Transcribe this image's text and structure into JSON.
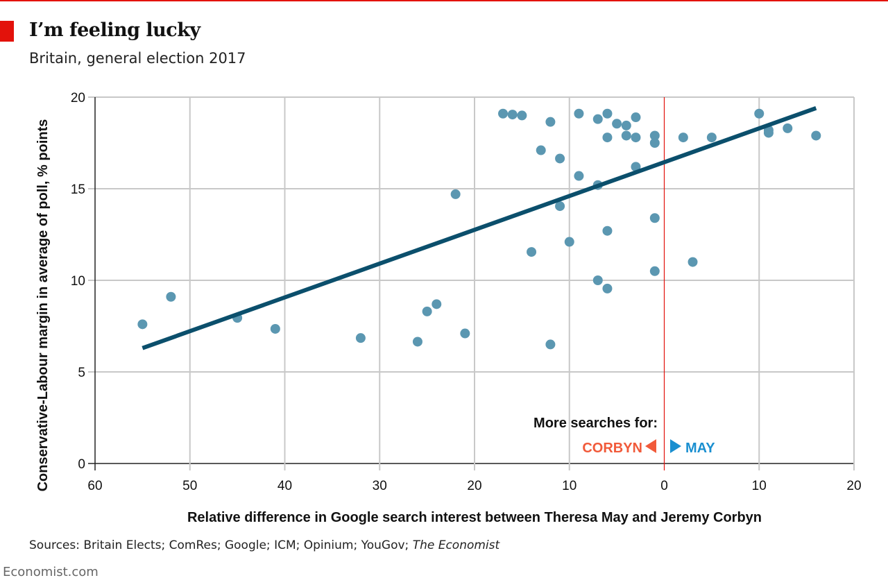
{
  "title": "I’m feeling lucky",
  "subtitle": "Britain, general election 2017",
  "source_prefix": "Sources: Britain Elects; ComRes; Google; ICM; Opinium; YouGov; ",
  "source_italic": "The Economist",
  "brand": "Economist.com",
  "chart_data": {
    "type": "scatter",
    "title": "I’m feeling lucky",
    "xlabel": "Relative difference in Google search interest between Theresa May and Jeremy Corbyn",
    "ylabel": "Conservative-Labour margin in average of poll, % points",
    "xlim": [
      -60,
      20
    ],
    "ylim": [
      0,
      20
    ],
    "x_ticks": [
      -60,
      -50,
      -40,
      -30,
      -20,
      -10,
      0,
      10,
      20
    ],
    "x_tick_labels": [
      "60",
      "50",
      "40",
      "30",
      "20",
      "10",
      "0",
      "10",
      "20"
    ],
    "y_ticks": [
      0,
      5,
      10,
      15,
      20
    ],
    "y_tick_labels": [
      "0",
      "5",
      "10",
      "15",
      "20"
    ],
    "grid": true,
    "colors": {
      "points": "#5b97b1",
      "trend": "#0b4f6c",
      "zero_line": "#e3120b",
      "corbyn": "#f15a3a",
      "may": "#1a8fd0"
    },
    "annotation": {
      "heading": "More searches for:",
      "left": "CORBYN",
      "right": "MAY"
    },
    "trendline": {
      "x": [
        -55,
        16
      ],
      "y": [
        6.3,
        19.4
      ]
    },
    "points": [
      [
        -55,
        7.6
      ],
      [
        -52,
        9.1
      ],
      [
        -45,
        7.95
      ],
      [
        -41,
        7.35
      ],
      [
        -32,
        6.85
      ],
      [
        -26,
        6.65
      ],
      [
        -25,
        8.3
      ],
      [
        -24,
        8.7
      ],
      [
        -22,
        14.7
      ],
      [
        -21,
        7.1
      ],
      [
        -17,
        19.1
      ],
      [
        -16,
        19.05
      ],
      [
        -15,
        19.0
      ],
      [
        -14,
        11.55
      ],
      [
        -13,
        17.1
      ],
      [
        -12,
        18.65
      ],
      [
        -12,
        6.5
      ],
      [
        -11,
        16.65
      ],
      [
        -11,
        14.05
      ],
      [
        -10,
        12.1
      ],
      [
        -9,
        19.1
      ],
      [
        -9,
        15.7
      ],
      [
        -7,
        18.8
      ],
      [
        -7,
        15.2
      ],
      [
        -7,
        10.0
      ],
      [
        -6,
        19.1
      ],
      [
        -6,
        17.8
      ],
      [
        -6,
        12.7
      ],
      [
        -6,
        9.55
      ],
      [
        -5,
        18.55
      ],
      [
        -4,
        18.45
      ],
      [
        -4,
        17.9
      ],
      [
        -3,
        18.9
      ],
      [
        -3,
        17.8
      ],
      [
        -3,
        16.2
      ],
      [
        -1,
        17.9
      ],
      [
        -1,
        17.5
      ],
      [
        -1,
        13.4
      ],
      [
        -1,
        10.5
      ],
      [
        2,
        17.8
      ],
      [
        3,
        11.0
      ],
      [
        5,
        17.8
      ],
      [
        10,
        19.1
      ],
      [
        11,
        18.2
      ],
      [
        11,
        18.05
      ],
      [
        13,
        18.3
      ],
      [
        16,
        17.9
      ]
    ]
  }
}
